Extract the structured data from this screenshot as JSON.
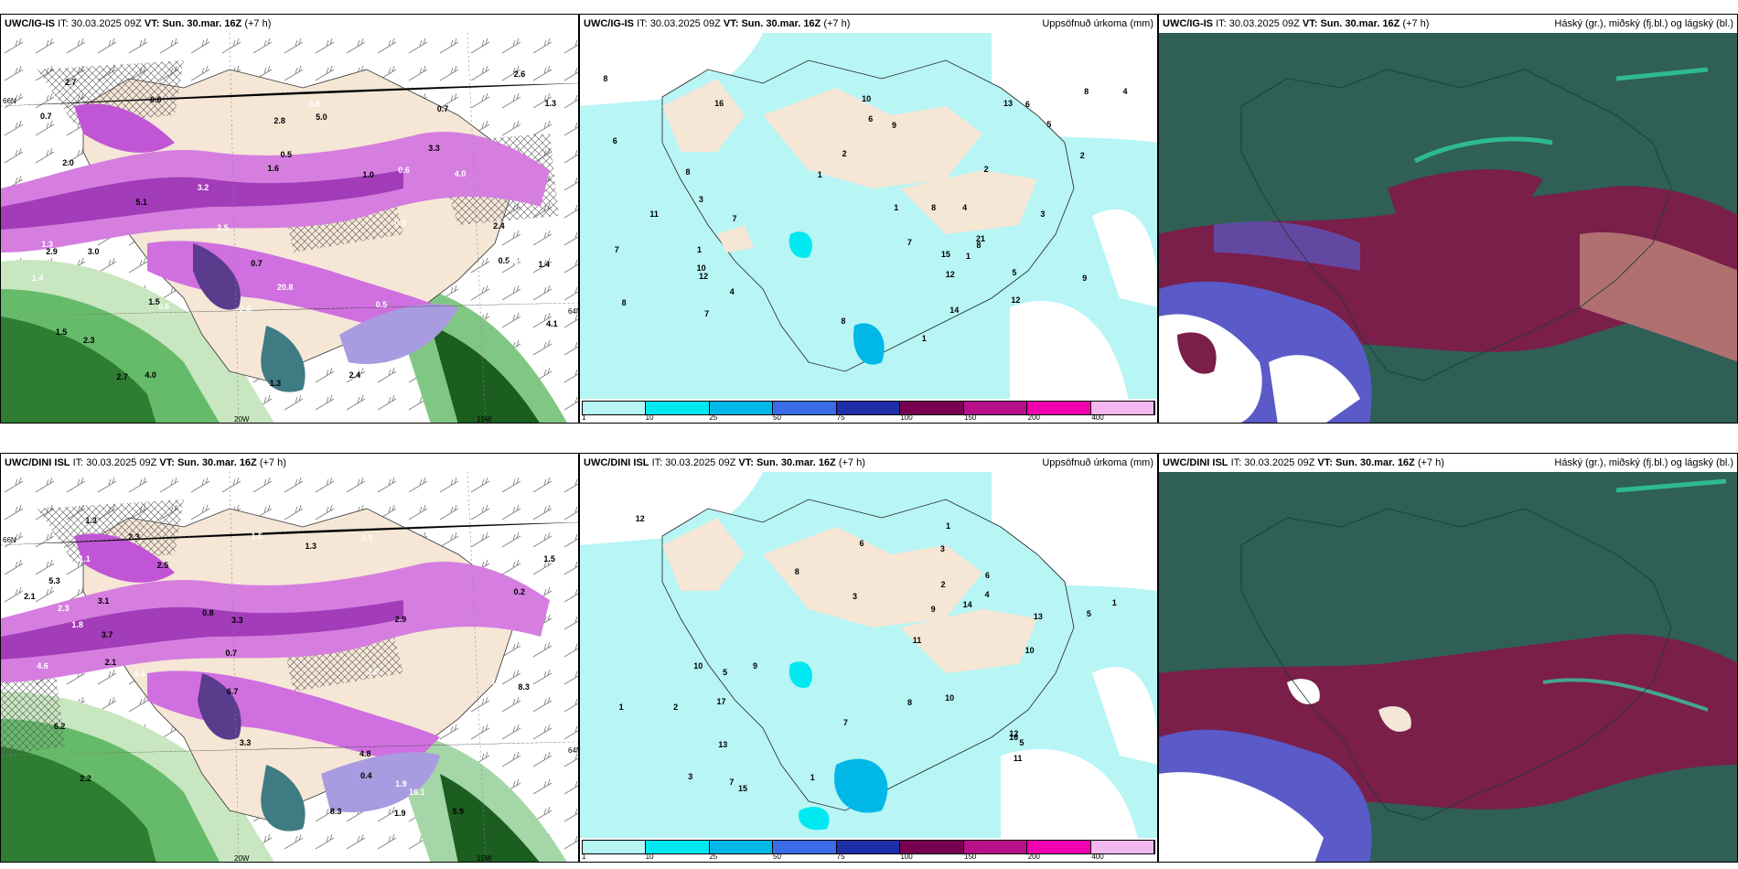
{
  "panels": [
    {
      "id": "top-left",
      "model": "UWC/IG-IS",
      "it_label": "IT:",
      "it_value": "30.03.2025 09Z",
      "vt_label": "VT:",
      "vt_value": "Sun. 30.mar. 16Z",
      "lead": "(+7 h)",
      "right_title": "",
      "lon_labels": [
        "20W",
        "15W"
      ],
      "lat_labels": [
        "66N",
        "64N"
      ],
      "values": [
        "0.5",
        "0.6",
        "0.5",
        "1.3",
        "1.3",
        "2.0",
        "2.5",
        "3.0",
        "5.1",
        "1.4",
        "5.0",
        "4.0",
        "3.2",
        "2.7",
        "1.6",
        "1.8",
        "2.9",
        "1.5",
        "0.6",
        "0.7",
        "0.5",
        "8.0",
        "2.4",
        "3.3",
        "4.0",
        "2.4",
        "2.7",
        "2.6",
        "2.6",
        "2.8",
        "0.5",
        "1.5",
        "1.3",
        "2.0",
        "1.0",
        "0.7",
        "20.8",
        "4.1",
        "1.4",
        "0.6",
        "0.7",
        "2.3",
        "1.1"
      ]
    },
    {
      "id": "top-middle",
      "model": "UWC/IG-IS",
      "it_label": "IT:",
      "it_value": "30.03.2025 09Z",
      "vt_label": "VT:",
      "vt_value": "Sun. 30.mar. 16Z",
      "lead": "(+7 h)",
      "right_title": "Uppsöfnuð úrkoma (mm)",
      "values": [
        "1",
        "2",
        "3",
        "8",
        "6",
        "10",
        "8",
        "7",
        "2",
        "13",
        "4",
        "1",
        "8",
        "8",
        "1",
        "11",
        "12",
        "8",
        "7",
        "6",
        "9",
        "5",
        "9",
        "6",
        "7",
        "12",
        "21",
        "14",
        "4",
        "1",
        "1",
        "2",
        "3",
        "16",
        "15",
        "8",
        "4",
        "5",
        "7",
        "10",
        "8",
        "12"
      ]
    },
    {
      "id": "top-right",
      "model": "UWC/IG-IS",
      "it_label": "IT:",
      "it_value": "30.03.2025 09Z",
      "vt_label": "VT:",
      "vt_value": "Sun. 30.mar. 16Z",
      "lead": "(+7 h)",
      "right_title": "Háský (gr.), miðský (fj.bl.) og lágský (bl.)"
    },
    {
      "id": "bottom-left",
      "model": "UWC/DINI ISL",
      "it_label": "IT:",
      "it_value": "30.03.2025 09Z",
      "vt_label": "VT:",
      "vt_value": "Sun. 30.mar. 16Z",
      "lead": "(+7 h)",
      "right_title": "",
      "lon_labels": [
        "20W",
        "15W"
      ],
      "lat_labels": [
        "66N",
        "64N"
      ],
      "values": [
        "1.1",
        "1.3",
        "1.5",
        "1.6",
        "2.5",
        "3.1",
        "2.3",
        "4.8",
        "3.3",
        "1.9",
        "2.1",
        "2.2",
        "1.0",
        "1.9",
        "8.3",
        "5.0",
        "5.3",
        "3.7",
        "4.4",
        "3.3",
        "2.1",
        "4.6",
        "6.2",
        "8.3",
        "16.1",
        "6.7",
        "5.9",
        "0.5",
        "2.9",
        "1.3",
        "1.8",
        "0.8",
        "2.3",
        "1.5",
        "0.4",
        "0.7",
        "0.6",
        "0.2"
      ]
    },
    {
      "id": "bottom-middle",
      "model": "UWC/DINI ISL",
      "it_label": "IT:",
      "it_value": "30.03.2025 09Z",
      "vt_label": "VT:",
      "vt_value": "Sun. 30.mar. 16Z",
      "lead": "(+7 h)",
      "right_title": "Uppsöfnuð úrkoma (mm)",
      "values": [
        "1",
        "3",
        "11",
        "2",
        "6",
        "10",
        "5",
        "7",
        "8",
        "10",
        "12",
        "13",
        "4",
        "1",
        "3",
        "5",
        "7",
        "14",
        "10",
        "9",
        "16",
        "13",
        "17",
        "12",
        "15",
        "11",
        "5",
        "9",
        "6",
        "3",
        "2",
        "1",
        "8",
        "1"
      ]
    },
    {
      "id": "bottom-right",
      "model": "UWC/DINI ISL",
      "it_label": "IT:",
      "it_value": "30.03.2025 09Z",
      "vt_label": "VT:",
      "vt_value": "Sun. 30.mar. 16Z",
      "lead": "(+7 h)",
      "right_title": "Háský (gr.), miðský (fj.bl.) og lágský (bl.)"
    }
  ],
  "legend": {
    "ticks": [
      "1",
      "10",
      "25",
      "50",
      "75",
      "100",
      "150",
      "200",
      "400"
    ],
    "colors": [
      "#b8f5f5",
      "#00e8f0",
      "#00b8e8",
      "#3a6ce8",
      "#1e2ea8",
      "#780050",
      "#b8108a",
      "#f000b0",
      "#f4b8f0"
    ]
  },
  "colors": {
    "land": "#f5e6d6",
    "precip_light": "#b8f5f5",
    "cloud_high": "#2f5f55",
    "cloud_mid": "#7a1e4a",
    "cloud_low": "#5a5ac8",
    "snow_purple": "#b040c8",
    "snow_green": "#2e7d32"
  }
}
